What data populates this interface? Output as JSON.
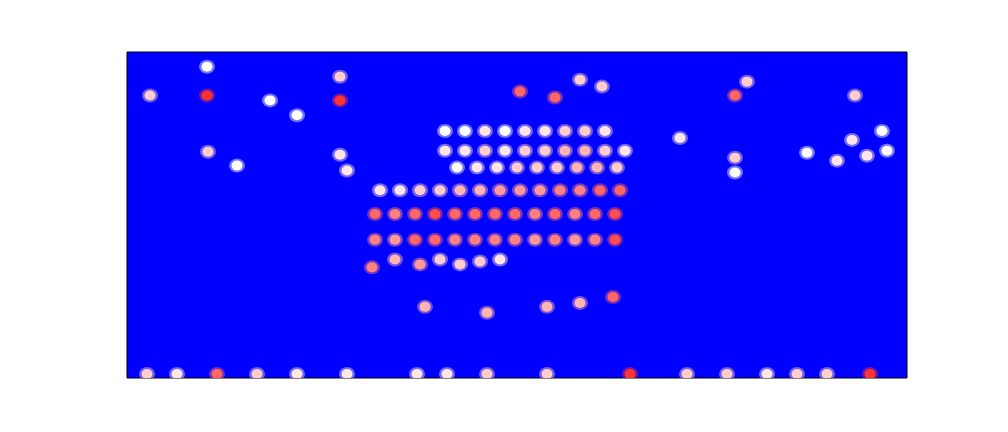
{
  "chart_data": {
    "type": "heatmap",
    "tick_labels": false,
    "grid": false,
    "xlim": [
      0,
      78
    ],
    "ylim": [
      0,
      33
    ],
    "vlim": [
      0,
      1
    ],
    "cells": [
      [
        2.3,
        28.6,
        0.6
      ],
      [
        8.0,
        28.6,
        0.9
      ],
      [
        8.0,
        31.5,
        0.5
      ],
      [
        14.3,
        28.1,
        0.5
      ],
      [
        17.0,
        26.6,
        0.5
      ],
      [
        21.3,
        28.1,
        0.9
      ],
      [
        21.3,
        30.5,
        0.6
      ],
      [
        39.3,
        29.0,
        0.8
      ],
      [
        42.8,
        28.4,
        0.8
      ],
      [
        45.3,
        30.2,
        0.6
      ],
      [
        47.5,
        29.5,
        0.6
      ],
      [
        60.8,
        28.6,
        0.8
      ],
      [
        62.0,
        30.0,
        0.6
      ],
      [
        72.8,
        28.6,
        0.6
      ],
      [
        8.1,
        22.9,
        0.6
      ],
      [
        11.0,
        21.5,
        0.5
      ],
      [
        21.3,
        22.6,
        0.55
      ],
      [
        22.0,
        21.0,
        0.55
      ],
      [
        55.3,
        24.3,
        0.55
      ],
      [
        60.8,
        22.3,
        0.6
      ],
      [
        60.8,
        20.8,
        0.5
      ],
      [
        68.0,
        22.8,
        0.5
      ],
      [
        71.0,
        22.0,
        0.55
      ],
      [
        72.5,
        24.1,
        0.55
      ],
      [
        74.0,
        22.5,
        0.55
      ],
      [
        76.0,
        23.0,
        0.5
      ],
      [
        75.5,
        25.0,
        0.5
      ],
      [
        31.8,
        25.0,
        0.5
      ],
      [
        33.8,
        25.0,
        0.5
      ],
      [
        35.8,
        25.0,
        0.55
      ],
      [
        37.8,
        25.0,
        0.5
      ],
      [
        39.8,
        25.0,
        0.55
      ],
      [
        41.8,
        25.0,
        0.55
      ],
      [
        43.8,
        25.0,
        0.6
      ],
      [
        45.8,
        25.0,
        0.6
      ],
      [
        47.8,
        25.0,
        0.55
      ],
      [
        31.8,
        23.0,
        0.55
      ],
      [
        33.8,
        23.0,
        0.55
      ],
      [
        35.8,
        23.0,
        0.6
      ],
      [
        37.8,
        23.0,
        0.55
      ],
      [
        39.8,
        23.0,
        0.6
      ],
      [
        41.8,
        23.0,
        0.6
      ],
      [
        43.8,
        23.0,
        0.65
      ],
      [
        45.8,
        23.0,
        0.65
      ],
      [
        47.8,
        23.0,
        0.6
      ],
      [
        49.8,
        23.0,
        0.55
      ],
      [
        33.0,
        21.3,
        0.5
      ],
      [
        35.0,
        21.3,
        0.55
      ],
      [
        37.0,
        21.3,
        0.55
      ],
      [
        39.0,
        21.3,
        0.6
      ],
      [
        41.0,
        21.3,
        0.6
      ],
      [
        43.0,
        21.3,
        0.6
      ],
      [
        45.0,
        21.3,
        0.65
      ],
      [
        47.0,
        21.3,
        0.65
      ],
      [
        49.0,
        21.3,
        0.6
      ],
      [
        25.3,
        19.0,
        0.55
      ],
      [
        27.3,
        19.0,
        0.55
      ],
      [
        29.3,
        19.0,
        0.6
      ],
      [
        31.3,
        19.0,
        0.6
      ],
      [
        33.3,
        19.0,
        0.65
      ],
      [
        35.3,
        19.0,
        0.65
      ],
      [
        37.3,
        19.0,
        0.7
      ],
      [
        39.3,
        19.0,
        0.7
      ],
      [
        41.3,
        19.0,
        0.7
      ],
      [
        43.3,
        19.0,
        0.75
      ],
      [
        45.3,
        19.0,
        0.75
      ],
      [
        47.3,
        19.0,
        0.8
      ],
      [
        49.3,
        19.0,
        0.8
      ],
      [
        24.8,
        16.6,
        0.8
      ],
      [
        26.8,
        16.6,
        0.75
      ],
      [
        28.8,
        16.6,
        0.8
      ],
      [
        30.8,
        16.6,
        0.85
      ],
      [
        32.8,
        16.6,
        0.8
      ],
      [
        34.8,
        16.6,
        0.8
      ],
      [
        36.8,
        16.6,
        0.8
      ],
      [
        38.8,
        16.6,
        0.8
      ],
      [
        40.8,
        16.6,
        0.75
      ],
      [
        42.8,
        16.6,
        0.8
      ],
      [
        44.8,
        16.6,
        0.75
      ],
      [
        46.8,
        16.6,
        0.8
      ],
      [
        48.8,
        16.6,
        0.85
      ],
      [
        24.8,
        14.0,
        0.75
      ],
      [
        26.8,
        14.0,
        0.7
      ],
      [
        28.8,
        14.0,
        0.8
      ],
      [
        30.8,
        14.0,
        0.8
      ],
      [
        32.8,
        14.0,
        0.75
      ],
      [
        34.8,
        14.0,
        0.75
      ],
      [
        36.8,
        14.0,
        0.75
      ],
      [
        38.8,
        14.0,
        0.75
      ],
      [
        40.8,
        14.0,
        0.7
      ],
      [
        42.8,
        14.0,
        0.75
      ],
      [
        44.8,
        14.0,
        0.7
      ],
      [
        46.8,
        14.0,
        0.75
      ],
      [
        48.8,
        14.0,
        0.85
      ],
      [
        24.5,
        11.2,
        0.75
      ],
      [
        26.8,
        12.0,
        0.65
      ],
      [
        29.3,
        11.5,
        0.7
      ],
      [
        31.3,
        12.0,
        0.6
      ],
      [
        33.3,
        11.5,
        0.6
      ],
      [
        35.3,
        11.8,
        0.6
      ],
      [
        37.3,
        12.0,
        0.55
      ],
      [
        29.8,
        7.2,
        0.65
      ],
      [
        36.0,
        6.6,
        0.65
      ],
      [
        42.0,
        7.2,
        0.65
      ],
      [
        45.3,
        7.6,
        0.65
      ],
      [
        48.6,
        8.2,
        0.8
      ],
      [
        2.0,
        0.4,
        0.6
      ],
      [
        5.0,
        0.4,
        0.55
      ],
      [
        9.0,
        0.4,
        0.8
      ],
      [
        13.0,
        0.4,
        0.6
      ],
      [
        17.0,
        0.4,
        0.55
      ],
      [
        22.0,
        0.4,
        0.55
      ],
      [
        29.0,
        0.4,
        0.55
      ],
      [
        32.0,
        0.4,
        0.55
      ],
      [
        36.0,
        0.4,
        0.6
      ],
      [
        42.0,
        0.4,
        0.6
      ],
      [
        50.3,
        0.4,
        0.9
      ],
      [
        56.0,
        0.4,
        0.6
      ],
      [
        60.0,
        0.4,
        0.6
      ],
      [
        64.0,
        0.4,
        0.55
      ],
      [
        67.0,
        0.4,
        0.6
      ],
      [
        70.0,
        0.4,
        0.6
      ],
      [
        74.3,
        0.4,
        0.9
      ]
    ]
  }
}
